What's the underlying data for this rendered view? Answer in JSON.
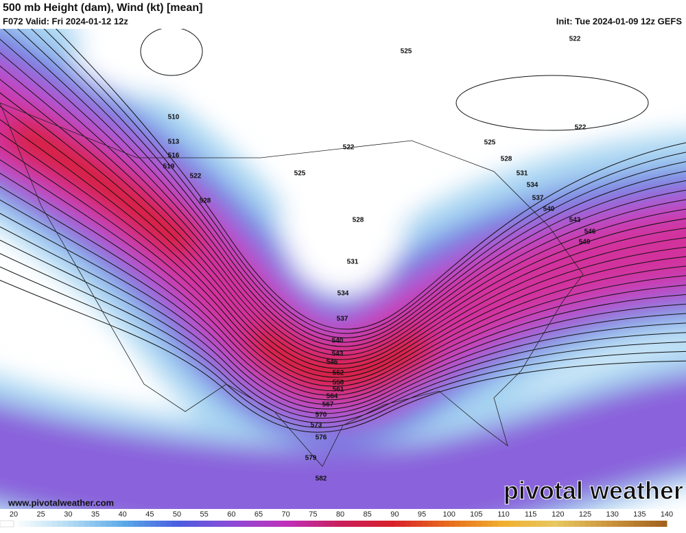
{
  "header": {
    "title": "500 mb Height (dam), Wind (kt) [mean]",
    "valid": "F072 Valid: Fri 2024-01-12 12z",
    "init": "Init: Tue 2024-01-09 12z GEFS"
  },
  "contour_labels": [
    525,
    522,
    510,
    513,
    516,
    519,
    522,
    528,
    525,
    522,
    525,
    528,
    531,
    534,
    537,
    540,
    543,
    546,
    549,
    522,
    528,
    531,
    534,
    537,
    540,
    543,
    546,
    552,
    558,
    561,
    564,
    567,
    570,
    573,
    576,
    579,
    582
  ],
  "colorbar": {
    "ticks": [
      20,
      25,
      30,
      35,
      40,
      45,
      50,
      55,
      60,
      65,
      70,
      75,
      80,
      85,
      90,
      95,
      100,
      105,
      110,
      115,
      120,
      125,
      130,
      135,
      140
    ]
  },
  "footer": {
    "website": "www.pivotalweather.com",
    "logo": "pivotal weather"
  }
}
